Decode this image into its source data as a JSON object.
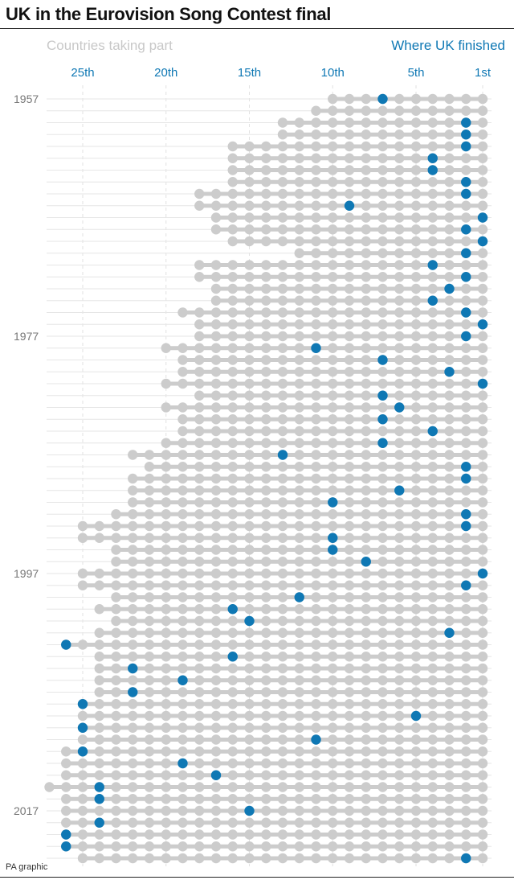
{
  "title": "UK in the Eurovision Song Contest final",
  "legend": {
    "participants_label": "Countries taking part",
    "uk_label": "Where UK finished",
    "participants_color": "#cccccc",
    "uk_color": "#0f78b4"
  },
  "credit": "PA graphic",
  "chart_data": {
    "type": "scatter",
    "title": "UK in the Eurovision Song Contest final",
    "x_axis": {
      "ticks": [
        25,
        20,
        15,
        10,
        5,
        1
      ],
      "tick_labels": [
        "25th",
        "20th",
        "15th",
        "10th",
        "5th",
        "1st"
      ],
      "range": [
        27,
        1
      ],
      "reversed": true
    },
    "y_axis": {
      "ticks": [
        1957,
        1977,
        1997,
        2017
      ],
      "tick_labels": [
        "1957",
        "1977",
        "1997",
        "2017"
      ]
    },
    "grid": true,
    "series": [
      {
        "name": "Countries taking part",
        "rows": [
          {
            "year": 1957,
            "countries": 10
          },
          {
            "year": 1958,
            "countries": 11
          },
          {
            "year": 1959,
            "countries": 13
          },
          {
            "year": 1960,
            "countries": 13
          },
          {
            "year": 1961,
            "countries": 16
          },
          {
            "year": 1962,
            "countries": 16
          },
          {
            "year": 1963,
            "countries": 16
          },
          {
            "year": 1964,
            "countries": 16
          },
          {
            "year": 1965,
            "countries": 18
          },
          {
            "year": 1966,
            "countries": 18
          },
          {
            "year": 1967,
            "countries": 17
          },
          {
            "year": 1968,
            "countries": 17
          },
          {
            "year": 1969,
            "countries": 16
          },
          {
            "year": 1970,
            "countries": 12
          },
          {
            "year": 1971,
            "countries": 18
          },
          {
            "year": 1972,
            "countries": 18
          },
          {
            "year": 1973,
            "countries": 17
          },
          {
            "year": 1974,
            "countries": 17
          },
          {
            "year": 1975,
            "countries": 19
          },
          {
            "year": 1976,
            "countries": 18
          },
          {
            "year": 1977,
            "countries": 18
          },
          {
            "year": 1978,
            "countries": 20
          },
          {
            "year": 1979,
            "countries": 19
          },
          {
            "year": 1980,
            "countries": 19
          },
          {
            "year": 1981,
            "countries": 20
          },
          {
            "year": 1982,
            "countries": 18
          },
          {
            "year": 1983,
            "countries": 20
          },
          {
            "year": 1984,
            "countries": 19
          },
          {
            "year": 1985,
            "countries": 19
          },
          {
            "year": 1986,
            "countries": 20
          },
          {
            "year": 1987,
            "countries": 22
          },
          {
            "year": 1988,
            "countries": 21
          },
          {
            "year": 1989,
            "countries": 22
          },
          {
            "year": 1990,
            "countries": 22
          },
          {
            "year": 1991,
            "countries": 22
          },
          {
            "year": 1992,
            "countries": 23
          },
          {
            "year": 1993,
            "countries": 25
          },
          {
            "year": 1994,
            "countries": 25
          },
          {
            "year": 1995,
            "countries": 23
          },
          {
            "year": 1996,
            "countries": 23
          },
          {
            "year": 1997,
            "countries": 25
          },
          {
            "year": 1998,
            "countries": 25
          },
          {
            "year": 1999,
            "countries": 23
          },
          {
            "year": 2000,
            "countries": 24
          },
          {
            "year": 2001,
            "countries": 23
          },
          {
            "year": 2002,
            "countries": 24
          },
          {
            "year": 2003,
            "countries": 26
          },
          {
            "year": 2004,
            "countries": 24
          },
          {
            "year": 2005,
            "countries": 24
          },
          {
            "year": 2006,
            "countries": 24
          },
          {
            "year": 2007,
            "countries": 24
          },
          {
            "year": 2008,
            "countries": 25
          },
          {
            "year": 2009,
            "countries": 25
          },
          {
            "year": 2010,
            "countries": 25
          },
          {
            "year": 2011,
            "countries": 25
          },
          {
            "year": 2012,
            "countries": 26
          },
          {
            "year": 2013,
            "countries": 26
          },
          {
            "year": 2014,
            "countries": 26
          },
          {
            "year": 2015,
            "countries": 27
          },
          {
            "year": 2016,
            "countries": 26
          },
          {
            "year": 2017,
            "countries": 26
          },
          {
            "year": 2018,
            "countries": 26
          },
          {
            "year": 2019,
            "countries": 26
          },
          {
            "year": 2021,
            "countries": 26
          },
          {
            "year": 2022,
            "countries": 25
          }
        ]
      },
      {
        "name": "Where UK finished",
        "points": [
          {
            "year": 1957,
            "place": 7
          },
          {
            "year": 1958,
            "place": null
          },
          {
            "year": 1959,
            "place": 2
          },
          {
            "year": 1960,
            "place": 2
          },
          {
            "year": 1961,
            "place": 2
          },
          {
            "year": 1962,
            "place": 4
          },
          {
            "year": 1963,
            "place": 4
          },
          {
            "year": 1964,
            "place": 2
          },
          {
            "year": 1965,
            "place": 2
          },
          {
            "year": 1966,
            "place": 9
          },
          {
            "year": 1967,
            "place": 1
          },
          {
            "year": 1968,
            "place": 2
          },
          {
            "year": 1969,
            "place": 1
          },
          {
            "year": 1970,
            "place": 2
          },
          {
            "year": 1971,
            "place": 4
          },
          {
            "year": 1972,
            "place": 2
          },
          {
            "year": 1973,
            "place": 3
          },
          {
            "year": 1974,
            "place": 4
          },
          {
            "year": 1975,
            "place": 2
          },
          {
            "year": 1976,
            "place": 1
          },
          {
            "year": 1977,
            "place": 2
          },
          {
            "year": 1978,
            "place": 11
          },
          {
            "year": 1979,
            "place": 7
          },
          {
            "year": 1980,
            "place": 3
          },
          {
            "year": 1981,
            "place": 1
          },
          {
            "year": 1982,
            "place": 7
          },
          {
            "year": 1983,
            "place": 6
          },
          {
            "year": 1984,
            "place": 7
          },
          {
            "year": 1985,
            "place": 4
          },
          {
            "year": 1986,
            "place": 7
          },
          {
            "year": 1987,
            "place": 13
          },
          {
            "year": 1988,
            "place": 2
          },
          {
            "year": 1989,
            "place": 2
          },
          {
            "year": 1990,
            "place": 6
          },
          {
            "year": 1991,
            "place": 10
          },
          {
            "year": 1992,
            "place": 2
          },
          {
            "year": 1993,
            "place": 2
          },
          {
            "year": 1994,
            "place": 10
          },
          {
            "year": 1995,
            "place": 10
          },
          {
            "year": 1996,
            "place": 8
          },
          {
            "year": 1997,
            "place": 1
          },
          {
            "year": 1998,
            "place": 2
          },
          {
            "year": 1999,
            "place": 12
          },
          {
            "year": 2000,
            "place": 16
          },
          {
            "year": 2001,
            "place": 15
          },
          {
            "year": 2002,
            "place": 3
          },
          {
            "year": 2003,
            "place": 26
          },
          {
            "year": 2004,
            "place": 16
          },
          {
            "year": 2005,
            "place": 22
          },
          {
            "year": 2006,
            "place": 19
          },
          {
            "year": 2007,
            "place": 22
          },
          {
            "year": 2008,
            "place": 25
          },
          {
            "year": 2009,
            "place": 5
          },
          {
            "year": 2010,
            "place": 25
          },
          {
            "year": 2011,
            "place": 11
          },
          {
            "year": 2012,
            "place": 25
          },
          {
            "year": 2013,
            "place": 19
          },
          {
            "year": 2014,
            "place": 17
          },
          {
            "year": 2015,
            "place": 24
          },
          {
            "year": 2016,
            "place": 24
          },
          {
            "year": 2017,
            "place": 15
          },
          {
            "year": 2018,
            "place": 24
          },
          {
            "year": 2019,
            "place": 26
          },
          {
            "year": 2021,
            "place": 26
          },
          {
            "year": 2022,
            "place": 2
          }
        ]
      }
    ]
  }
}
